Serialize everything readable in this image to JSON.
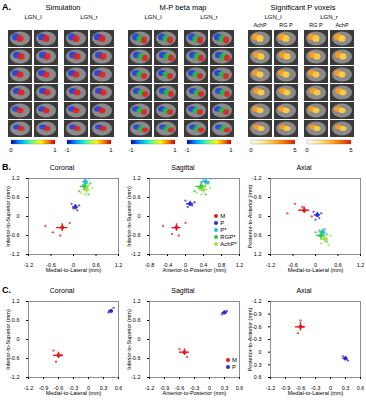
{
  "panel_a": {
    "label": "A.",
    "groups": [
      {
        "title": "Simulation",
        "subgroups": [
          {
            "label": "LGN_l",
            "columns": []
          },
          {
            "label": "LGN_r",
            "columns": []
          }
        ],
        "colorbars": [
          {
            "min": 0,
            "max": 1
          },
          {
            "min": -1,
            "max": 1
          }
        ]
      },
      {
        "title": "M-P  beta map",
        "subgroups": [
          {
            "label": "LGN_l",
            "columns": []
          },
          {
            "label": "LGN_r",
            "columns": []
          }
        ],
        "colorbars": [
          {
            "min": -1,
            "max": 1
          },
          {
            "min": -1,
            "max": 1
          }
        ]
      },
      {
        "title": "Significant P voxels",
        "subgroups": [
          {
            "label": "LGN_l",
            "columns": [
              "AchP",
              "RG P"
            ]
          },
          {
            "label": "LGN_r",
            "columns": [
              "RG P",
              "AchP"
            ]
          }
        ],
        "colorbars": [
          {
            "min": 0,
            "max": 5
          },
          {
            "min": 0,
            "max": 5
          }
        ]
      }
    ]
  },
  "panel_labels": [
    "B.",
    "C."
  ],
  "chart_data": [
    {
      "panel": "B.",
      "type": "scatter",
      "title": "Coronal",
      "x_label": "Medial-to-Lateral (mm)",
      "y_label": "Inferior-to-Superior (mm)",
      "xlim": [
        -1.2,
        1.2
      ],
      "xticks": [
        -1.2,
        -0.6,
        0,
        0.6,
        1.2
      ],
      "ylim": [
        -1.2,
        1.2
      ],
      "yticks": [
        -1.2,
        -0.6,
        0,
        0.6,
        1.2
      ],
      "series": [
        {
          "name": "M",
          "color": "#e8191c",
          "x": -0.3,
          "y": -0.35,
          "xerr": 0.15,
          "yerr": 0.12,
          "points_x": [
            -0.75,
            -0.55,
            -0.1,
            -0.35
          ],
          "points_y": [
            -0.3,
            -0.5,
            -0.2,
            -0.6
          ]
        },
        {
          "name": "P",
          "color": "#2b2bd6",
          "x": 0.05,
          "y": 0.3,
          "xerr": 0.08,
          "yerr": 0.08,
          "points_x": [
            0.1,
            -0.05,
            0.15,
            0.0
          ],
          "points_y": [
            0.2,
            0.4,
            0.35,
            0.25
          ]
        },
        {
          "name": "P*",
          "color": "#2ab7e8",
          "x": 0.32,
          "y": 1.1,
          "xerr": 0.08,
          "yerr": 0.1,
          "points_x": [
            0.25,
            0.4,
            0.35,
            0.3
          ],
          "points_y": [
            1.0,
            1.2,
            1.05,
            1.15
          ]
        },
        {
          "name": "RGP*",
          "color": "#2ecc40",
          "x": 0.3,
          "y": 0.95,
          "xerr": 0.12,
          "yerr": 0.15,
          "points_x": [
            0.15,
            0.45,
            0.3,
            0.4
          ],
          "points_y": [
            0.8,
            1.05,
            0.9,
            0.7
          ]
        },
        {
          "name": "AchP*",
          "color": "#a5e04a",
          "x": 0.35,
          "y": 0.85,
          "xerr": 0.1,
          "yerr": 0.12,
          "points_x": [
            0.5,
            0.2,
            0.4,
            0.3
          ],
          "points_y": [
            0.9,
            0.75,
            1.0,
            0.7
          ]
        }
      ]
    },
    {
      "panel": "B.",
      "type": "scatter",
      "title": "Sagittal",
      "x_label": "Anterior-to-Posterior (mm)",
      "y_label": "Inferior-to-Superior (mm)",
      "xlim": [
        -0.8,
        1.2
      ],
      "xticks": [
        -0.8,
        -0.4,
        0,
        0.4,
        0.8,
        1.2
      ],
      "ylim": [
        -1.2,
        1.2
      ],
      "yticks": [
        -1.2,
        -0.6,
        0,
        0.6,
        1.2
      ],
      "legend": "lower right",
      "series": [
        {
          "name": "M",
          "color": "#e8191c",
          "x": -0.2,
          "y": -0.35,
          "xerr": 0.1,
          "yerr": 0.12,
          "points_x": [
            -0.5,
            -0.3,
            0.0,
            -0.15
          ],
          "points_y": [
            -0.3,
            -0.55,
            -0.2,
            -0.6
          ]
        },
        {
          "name": "P",
          "color": "#2b2bd6",
          "x": 0.1,
          "y": 0.4,
          "xerr": 0.08,
          "yerr": 0.08,
          "points_x": [
            0.05,
            0.2,
            0.15,
            0.0
          ],
          "points_y": [
            0.3,
            0.45,
            0.35,
            0.5
          ]
        },
        {
          "name": "P*",
          "color": "#2ab7e8",
          "x": 0.45,
          "y": 1.1,
          "xerr": 0.1,
          "yerr": 0.1,
          "points_x": [
            0.35,
            0.55,
            0.5,
            0.4
          ],
          "points_y": [
            1.0,
            1.2,
            1.05,
            1.15
          ]
        },
        {
          "name": "RGP*",
          "color": "#2ecc40",
          "x": 0.35,
          "y": 0.95,
          "xerr": 0.12,
          "yerr": 0.15,
          "points_x": [
            0.2,
            0.5,
            0.3,
            0.45
          ],
          "points_y": [
            0.8,
            1.05,
            0.9,
            0.7
          ]
        },
        {
          "name": "AchP*",
          "color": "#a5e04a",
          "x": 0.4,
          "y": 0.85,
          "xerr": 0.1,
          "yerr": 0.12,
          "points_x": [
            0.55,
            0.25,
            0.45,
            0.35
          ],
          "points_y": [
            0.9,
            0.75,
            1.0,
            0.7
          ]
        }
      ]
    },
    {
      "panel": "B.",
      "type": "scatter",
      "title": "Axial",
      "x_label": "Medial-to-Lateral (mm)",
      "y_label": "Posterior-to-Anterior (mm)",
      "xlim": [
        -1.2,
        1.2
      ],
      "xticks": [
        -1.2,
        -0.6,
        0,
        0.6,
        1.2
      ],
      "ylim": [
        1.2,
        -1.2
      ],
      "yticks": [
        -1.2,
        -0.6,
        0,
        0.6,
        1.2
      ],
      "series": [
        {
          "name": "M",
          "color": "#e8191c",
          "x": -0.3,
          "y": -0.2,
          "xerr": 0.15,
          "yerr": 0.1,
          "points_x": [
            -0.75,
            -0.55,
            -0.1,
            -0.35
          ],
          "points_y": [
            -0.1,
            -0.4,
            0.0,
            -0.3
          ]
        },
        {
          "name": "P",
          "color": "#2b2bd6",
          "x": 0.05,
          "y": -0.05,
          "xerr": 0.08,
          "yerr": 0.08,
          "points_x": [
            0.1,
            -0.05,
            0.15,
            0.0
          ],
          "points_y": [
            0.05,
            -0.15,
            -0.1,
            0.1
          ]
        },
        {
          "name": "P*",
          "color": "#2ab7e8",
          "x": 0.2,
          "y": 0.5,
          "xerr": 0.08,
          "yerr": 0.1,
          "points_x": [
            0.25,
            0.1,
            0.3,
            0.2
          ],
          "points_y": [
            0.4,
            0.6,
            0.55,
            0.45
          ]
        },
        {
          "name": "RGP*",
          "color": "#2ecc40",
          "x": 0.15,
          "y": 0.6,
          "xerr": 0.12,
          "yerr": 0.15,
          "points_x": [
            0.0,
            0.3,
            0.2,
            0.1
          ],
          "points_y": [
            0.5,
            0.8,
            0.7,
            0.45
          ]
        },
        {
          "name": "AchP*",
          "color": "#a5e04a",
          "x": 0.25,
          "y": 0.7,
          "xerr": 0.1,
          "yerr": 0.12,
          "points_x": [
            0.4,
            0.15,
            0.3,
            0.35
          ],
          "points_y": [
            0.6,
            0.85,
            0.75,
            0.9
          ]
        }
      ]
    },
    {
      "panel": "C.",
      "type": "scatter",
      "title": "Coronal",
      "x_label": "Medial-to-Lateral (mm)",
      "y_label": "Inferior-to-Superior (mm)",
      "xlim": [
        -1.2,
        0.6
      ],
      "xticks": [
        -1.2,
        -0.9,
        -0.6,
        -0.3,
        0,
        0.3,
        0.6
      ],
      "ylim": [
        -1.2,
        1.2
      ],
      "yticks": [
        -1.2,
        -0.6,
        0,
        0.6,
        1.2
      ],
      "series": [
        {
          "name": "M",
          "color": "#e8191c",
          "x": -0.6,
          "y": -0.5,
          "xerr": 0.1,
          "yerr": 0.1,
          "points_x": [
            -0.7,
            -0.65,
            -0.55
          ],
          "points_y": [
            -0.35,
            -0.7,
            -0.5
          ]
        },
        {
          "name": "P",
          "color": "#2b2bd6",
          "x": 0.45,
          "y": 0.9,
          "xerr": 0.05,
          "yerr": 0.05,
          "points_x": [
            0.5,
            0.4
          ],
          "points_y": [
            1.0,
            0.85
          ]
        }
      ]
    },
    {
      "panel": "C.",
      "type": "scatter",
      "title": "Sagittal",
      "x_label": "Anterior-to-Posterior (mm)",
      "y_label": "Inferior-to-Superior (mm)",
      "xlim": [
        -1.2,
        0.6
      ],
      "xticks": [
        -1.2,
        -0.9,
        -0.6,
        -0.3,
        0,
        0.3,
        0.6
      ],
      "ylim": [
        -1.2,
        1.2
      ],
      "yticks": [
        -1.2,
        -0.6,
        0,
        0.6,
        1.2
      ],
      "legend": "lower right",
      "series": [
        {
          "name": "M",
          "color": "#e8191c",
          "x": -0.5,
          "y": -0.4,
          "xerr": 0.1,
          "yerr": 0.1,
          "points_x": [
            -0.6,
            -0.45,
            -0.5
          ],
          "points_y": [
            -0.3,
            -0.55,
            -0.4
          ]
        },
        {
          "name": "P",
          "color": "#2b2bd6",
          "x": 0.3,
          "y": 0.85,
          "xerr": 0.05,
          "yerr": 0.05,
          "points_x": [
            0.35,
            0.25
          ],
          "points_y": [
            0.9,
            0.8
          ]
        }
      ]
    },
    {
      "panel": "C.",
      "type": "scatter",
      "title": "Axial",
      "x_label": "Medial-to-Lateral (mm)",
      "y_label": "Posterior-to-Anterior (mm)",
      "xlim": [
        -1.2,
        0.6
      ],
      "xticks": [
        -1.2,
        -0.9,
        -0.6,
        -0.3,
        0,
        0.3,
        0.6
      ],
      "ylim": [
        0.6,
        -1.2
      ],
      "yticks": [
        -1.2,
        -0.9,
        -0.6,
        -0.3,
        0,
        0.3,
        0.6
      ],
      "series": [
        {
          "name": "M",
          "color": "#e8191c",
          "x": -0.6,
          "y": -0.6,
          "xerr": 0.1,
          "yerr": 0.1,
          "points_x": [
            -0.65,
            -0.6,
            -0.55
          ],
          "points_y": [
            -0.45,
            -0.75,
            -0.6
          ]
        },
        {
          "name": "P",
          "color": "#2b2bd6",
          "x": 0.3,
          "y": 0.15,
          "xerr": 0.05,
          "yerr": 0.05,
          "points_x": [
            0.35,
            0.25
          ],
          "points_y": [
            0.2,
            0.1
          ]
        }
      ]
    }
  ]
}
